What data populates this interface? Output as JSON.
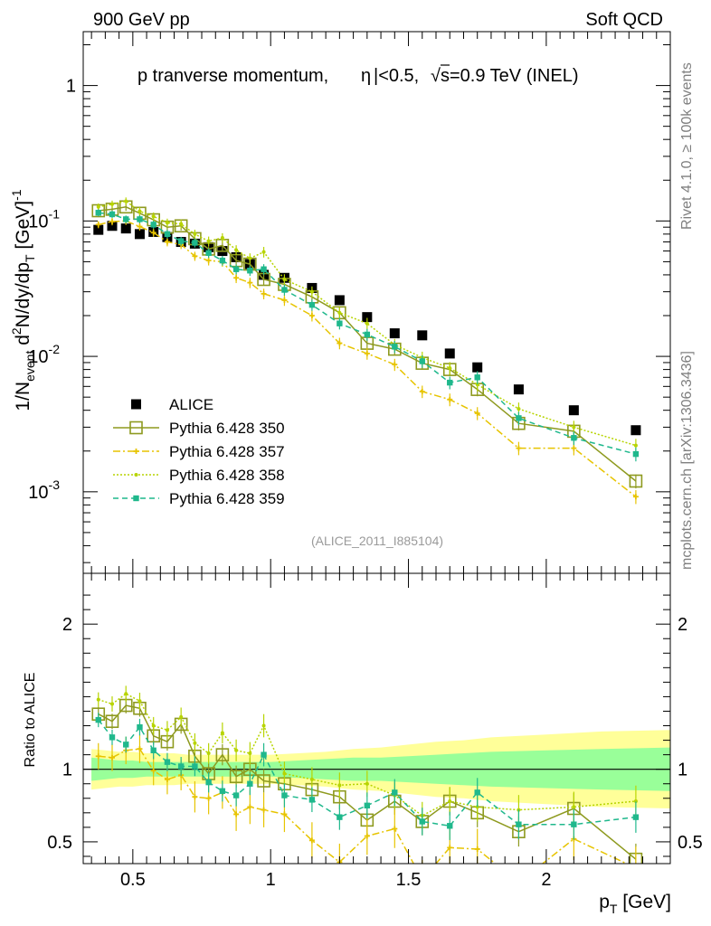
{
  "header": {
    "left": "900 GeV pp",
    "right": "Soft QCD"
  },
  "side_labels": {
    "rivet": "Rivet 4.1.0, ≥ 100k events",
    "mcplots": "mcplots.cern.ch [arXiv:1306.3436]"
  },
  "chart_data": [
    {
      "type": "scatter",
      "title": "p tranverse momentum, |η|<0.5, √s=0.9 TeV (INEL)",
      "title_parts": {
        "prefix": "p tranverse momentum, ",
        "eta": "η",
        "mid": "|<0.5, ",
        "sqrt": "√",
        "s": "s",
        "suffix": "=0.9 TeV (INEL)"
      },
      "ylabel": "1/N_event d²N/dy/dp_T [GeV]⁻¹",
      "ylabel_parts": {
        "a": "1/N",
        "sub1": "event",
        "b": " d",
        "sup": "2",
        "c": "N/dy/dp",
        "sub2": "T",
        "d": " [GeV]",
        "sup2": "-1"
      },
      "yscale": "log",
      "xlim": [
        0.32,
        2.45
      ],
      "ylim": [
        0.00025,
        2.5
      ],
      "yticks": [
        {
          "value": 1,
          "label": "1"
        },
        {
          "value": 0.1,
          "label": "10",
          "exp": "-1"
        },
        {
          "value": 0.01,
          "label": "10",
          "exp": "-2"
        },
        {
          "value": 0.001,
          "label": "10",
          "exp": "-3"
        }
      ],
      "watermark": "(ALICE_2011_I885104)",
      "x": [
        0.375,
        0.425,
        0.475,
        0.525,
        0.575,
        0.625,
        0.675,
        0.725,
        0.775,
        0.825,
        0.875,
        0.925,
        0.975,
        1.05,
        1.15,
        1.25,
        1.35,
        1.45,
        1.55,
        1.65,
        1.75,
        1.9,
        2.1,
        2.325
      ],
      "series": [
        {
          "name": "ALICE",
          "values": [
            0.086,
            0.092,
            0.088,
            0.08,
            0.083,
            0.076,
            0.07,
            0.068,
            0.064,
            0.06,
            0.054,
            0.048,
            0.04,
            0.038,
            0.032,
            0.026,
            0.0195,
            0.0148,
            0.0143,
            0.0105,
            0.0083,
            0.0057,
            0.004,
            0.00285
          ],
          "color": "#000000",
          "style": "data"
        },
        {
          "name": "Pythia 6.428 350",
          "values": [
            0.119,
            0.122,
            0.127,
            0.114,
            0.102,
            0.09,
            0.092,
            0.074,
            0.062,
            0.066,
            0.051,
            0.048,
            0.037,
            0.034,
            0.0275,
            0.021,
            0.0125,
            0.0113,
            0.0089,
            0.008,
            0.0057,
            0.0032,
            0.0028,
            0.0012
          ],
          "color": "#8e9a1f",
          "style": "open-square-solid"
        },
        {
          "name": "Pythia 6.428 357",
          "values": [
            0.094,
            0.099,
            0.1,
            0.091,
            0.082,
            0.07,
            0.067,
            0.055,
            0.051,
            0.05,
            0.038,
            0.035,
            0.029,
            0.026,
            0.02,
            0.0125,
            0.0105,
            0.0087,
            0.0055,
            0.0048,
            0.0038,
            0.0021,
            0.0021,
            0.00092
          ],
          "color": "#e7c400",
          "style": "dashdot-cross"
        },
        {
          "name": "Pythia 6.428 358",
          "values": [
            0.127,
            0.133,
            0.14,
            0.118,
            0.108,
            0.097,
            0.095,
            0.08,
            0.071,
            0.075,
            0.061,
            0.053,
            0.059,
            0.037,
            0.03,
            0.021,
            0.0175,
            0.0122,
            0.0098,
            0.0082,
            0.0062,
            0.0041,
            0.003,
            0.0022
          ],
          "color": "#b7d400",
          "style": "dotted-dot"
        },
        {
          "name": "Pythia 6.428 359",
          "values": [
            0.115,
            0.112,
            0.103,
            0.103,
            0.094,
            0.08,
            0.071,
            0.069,
            0.058,
            0.051,
            0.044,
            0.043,
            0.044,
            0.031,
            0.024,
            0.0175,
            0.0145,
            0.0118,
            0.0092,
            0.0064,
            0.007,
            0.0035,
            0.0025,
            0.0019
          ],
          "color": "#1fb88c",
          "style": "dashed-square"
        }
      ]
    },
    {
      "type": "line",
      "ylabel": "Ratio to ALICE",
      "xlabel": "p_T [GeV]",
      "xlabel_parts": {
        "a": "p",
        "sub": "T",
        "b": " [GeV]"
      },
      "xlim": [
        0.32,
        2.45
      ],
      "ylim": [
        0.35,
        2.35
      ],
      "xticks": [
        {
          "value": 0.5,
          "label": "0.5"
        },
        {
          "value": 1,
          "label": "1"
        },
        {
          "value": 1.5,
          "label": "1.5"
        },
        {
          "value": 2,
          "label": "2"
        }
      ],
      "yticks": [
        {
          "value": 0.5,
          "label": "0.5"
        },
        {
          "value": 1,
          "label": "1"
        },
        {
          "value": 2,
          "label": "2"
        }
      ],
      "bands": {
        "x": [
          0.35,
          0.4,
          0.45,
          0.5,
          0.55,
          0.6,
          0.65,
          0.7,
          0.75,
          0.8,
          0.85,
          0.9,
          0.95,
          1.0,
          1.1,
          1.2,
          1.3,
          1.4,
          1.5,
          1.6,
          1.7,
          1.8,
          2.0,
          2.2,
          2.45
        ],
        "yellow_half": [
          0.14,
          0.13,
          0.12,
          0.12,
          0.11,
          0.11,
          0.11,
          0.1,
          0.1,
          0.1,
          0.1,
          0.1,
          0.1,
          0.1,
          0.11,
          0.12,
          0.14,
          0.15,
          0.17,
          0.19,
          0.2,
          0.22,
          0.24,
          0.26,
          0.27
        ],
        "green_half": [
          0.08,
          0.07,
          0.06,
          0.06,
          0.05,
          0.05,
          0.05,
          0.05,
          0.05,
          0.05,
          0.05,
          0.05,
          0.05,
          0.05,
          0.06,
          0.07,
          0.08,
          0.08,
          0.09,
          0.1,
          0.11,
          0.12,
          0.13,
          0.14,
          0.15
        ]
      },
      "series": [
        {
          "name": "Pythia 6.428 350",
          "values": [
            1.38,
            1.33,
            1.44,
            1.42,
            1.23,
            1.19,
            1.31,
            1.09,
            0.97,
            1.1,
            0.95,
            1.0,
            0.92,
            0.9,
            0.86,
            0.81,
            0.65,
            0.78,
            0.64,
            0.78,
            0.7,
            0.57,
            0.73,
            0.38
          ],
          "color": "#8e9a1f"
        },
        {
          "name": "Pythia 6.428 357",
          "values": [
            1.09,
            1.08,
            1.13,
            1.14,
            0.99,
            0.93,
            0.96,
            0.81,
            0.8,
            0.84,
            0.69,
            0.74,
            0.72,
            0.69,
            0.51,
            0.36,
            0.54,
            0.59,
            0.24,
            0.46,
            0.45,
            0.22,
            0.52,
            0.32
          ],
          "color": "#e7c400"
        },
        {
          "name": "Pythia 6.428 358",
          "values": [
            1.48,
            1.45,
            1.52,
            1.47,
            1.3,
            1.27,
            1.36,
            1.18,
            1.11,
            1.25,
            1.13,
            1.11,
            1.3,
            0.97,
            0.93,
            0.89,
            0.9,
            0.82,
            0.68,
            0.78,
            0.74,
            0.72,
            0.74,
            0.78
          ],
          "color": "#b7d400"
        },
        {
          "name": "Pythia 6.428 359",
          "values": [
            1.34,
            1.22,
            1.17,
            1.29,
            1.13,
            1.05,
            1.02,
            1.02,
            0.91,
            0.85,
            0.82,
            0.9,
            1.1,
            0.82,
            0.79,
            0.67,
            0.75,
            0.84,
            0.64,
            0.61,
            0.84,
            0.62,
            0.62,
            0.67
          ],
          "color": "#1fb88c"
        }
      ]
    }
  ]
}
